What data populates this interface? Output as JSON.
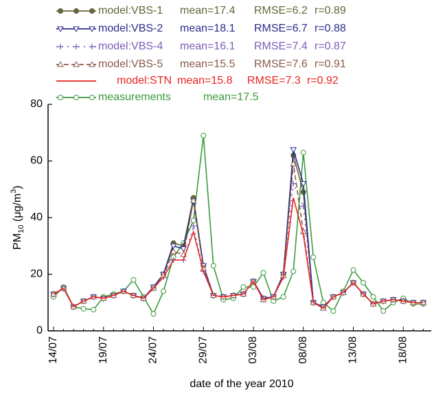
{
  "chart_data": {
    "type": "line",
    "x_label": "date of the year 2010",
    "y_label": [
      "PM",
      "10",
      " (μg/m",
      "3",
      ")"
    ],
    "categories": [
      "14/07",
      null,
      null,
      null,
      null,
      "19/07",
      null,
      null,
      null,
      null,
      "24/07",
      null,
      null,
      null,
      null,
      "29/07",
      null,
      null,
      null,
      null,
      "03/08",
      null,
      null,
      null,
      null,
      "08/08",
      null,
      null,
      null,
      null,
      "13/08",
      null,
      null,
      null,
      null,
      "18/08",
      null,
      null
    ],
    "ylim": [
      0,
      80
    ],
    "yticks": [
      0,
      20,
      40,
      60,
      80
    ],
    "series": [
      {
        "name": "model:VBS-1",
        "stats": [
          "mean=17.4",
          "RMSE=6.2",
          "r=0.89"
        ],
        "color": "#66663a",
        "marker": "circle-filled",
        "dash": "none",
        "values": [
          13,
          15,
          8.5,
          10.5,
          12,
          11.5,
          12.5,
          14,
          12.5,
          11.5,
          15.5,
          20,
          31,
          30,
          47,
          23,
          12.5,
          12,
          12.5,
          13,
          17.5,
          11.5,
          12,
          20,
          62,
          49,
          10,
          8.5,
          12,
          13.5,
          17,
          13,
          9.5,
          10.5,
          11,
          10.5,
          10,
          10
        ]
      },
      {
        "name": "model:VBS-2",
        "stats": [
          "mean=18.1",
          "RMSE=6.7",
          "r=0.88"
        ],
        "color": "#2b2b8c",
        "marker": "triangle-down",
        "dash": "none",
        "values": [
          13,
          15,
          8.5,
          10.5,
          12,
          11.5,
          12.5,
          14,
          12.5,
          11.5,
          15.5,
          20,
          30,
          29,
          46,
          23,
          12.5,
          12,
          12.5,
          13,
          17.5,
          11.5,
          12,
          20,
          64,
          52,
          10,
          8.5,
          12,
          13.5,
          17,
          13,
          9.5,
          10.5,
          11,
          10.5,
          10,
          10
        ]
      },
      {
        "name": "model:VBS-4",
        "stats": [
          "mean=16.1",
          "RMSE=7.4",
          "r=0.87"
        ],
        "color": "#7b5cb8",
        "marker": "plus",
        "dash": "2,6",
        "values": [
          13,
          15,
          8.5,
          10.5,
          12,
          11.5,
          12.5,
          14,
          12.5,
          11.5,
          15,
          19,
          25,
          25,
          37,
          21,
          12.5,
          12,
          12.5,
          13,
          17.5,
          11,
          12,
          19,
          52,
          44,
          10,
          8,
          12,
          13.5,
          17,
          13,
          9.5,
          10.5,
          11,
          10.5,
          10,
          10
        ]
      },
      {
        "name": "model:VBS-5",
        "stats": [
          "mean=15.5",
          "RMSE=7.6",
          "r=0.91"
        ],
        "color": "#8b5a4a",
        "marker": "triangle",
        "dash": "7,4",
        "values": [
          13,
          15,
          8.5,
          10.5,
          12,
          11.5,
          12.5,
          14,
          12.5,
          11.5,
          15,
          19.5,
          28,
          27,
          46,
          22,
          12.5,
          12,
          12.5,
          13,
          17.5,
          11,
          12,
          19.5,
          59,
          35,
          10,
          8,
          12,
          13.5,
          17,
          13,
          9.5,
          10.5,
          11,
          10.5,
          10,
          10
        ]
      },
      {
        "name": "model:STN",
        "stats": [
          "mean=15.8",
          "RMSE=7.3",
          "r=0.92"
        ],
        "color": "#e8231f",
        "marker": "none",
        "dash": "none",
        "values": [
          13,
          15,
          8.5,
          10.5,
          12,
          11.5,
          12.5,
          14,
          12.5,
          11.5,
          15,
          19,
          25,
          25,
          35,
          21,
          12.5,
          12,
          12.5,
          13,
          17.5,
          11,
          12,
          19,
          47,
          34,
          10,
          8,
          12,
          13.5,
          17,
          13,
          9.5,
          10.5,
          11,
          10.5,
          10,
          10
        ]
      },
      {
        "name": "measurements",
        "stats": [
          "mean=17.5"
        ],
        "color": "#3a9a3a",
        "marker": "circle-open",
        "dash": "none",
        "values": [
          12,
          15.5,
          8.5,
          7.8,
          7.5,
          12,
          13,
          14,
          18,
          12,
          6,
          14,
          26,
          31,
          39,
          69,
          23,
          11,
          11.5,
          15.5,
          15.5,
          20.5,
          10.5,
          12,
          21,
          63,
          26,
          10,
          7,
          14,
          21.5,
          17,
          12,
          7,
          10,
          11.5,
          9.5,
          9.5
        ]
      }
    ]
  }
}
